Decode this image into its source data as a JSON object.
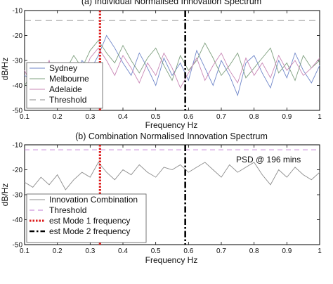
{
  "chart_data": [
    {
      "type": "line",
      "title": "(a) Individual Normalised Innovation Spectrum",
      "xlabel": "Frequency Hz",
      "ylabel": "dB/Hz",
      "xlim": [
        0.1,
        1
      ],
      "ylim": [
        -50,
        -10
      ],
      "xticks": [
        "0.1",
        "0.2",
        "0.3",
        "0.4",
        "0.5",
        "0.6",
        "0.7",
        "0.8",
        "0.9",
        "1"
      ],
      "yticks": [
        "-50",
        "-40",
        "-30",
        "-20",
        "-10"
      ],
      "legend_position": "bottom-left",
      "legend": [
        "Sydney",
        "Melbourne",
        "Adelaide",
        "Threshold"
      ],
      "x": [
        0.1,
        0.125,
        0.15,
        0.175,
        0.2,
        0.225,
        0.25,
        0.275,
        0.3,
        0.325,
        0.35,
        0.375,
        0.4,
        0.425,
        0.45,
        0.475,
        0.5,
        0.525,
        0.55,
        0.575,
        0.6,
        0.625,
        0.65,
        0.675,
        0.7,
        0.725,
        0.75,
        0.775,
        0.8,
        0.825,
        0.85,
        0.875,
        0.9,
        0.925,
        0.95,
        0.975,
        1.0
      ],
      "series": [
        {
          "name": "Sydney",
          "color": "#6f86c9",
          "dash": "",
          "values": [
            -36,
            -38,
            -33,
            -40,
            -35,
            -42,
            -37,
            -30,
            -34,
            -28,
            -20,
            -25,
            -31,
            -36,
            -27,
            -33,
            -40,
            -29,
            -36,
            -31,
            -38,
            -26,
            -33,
            -40,
            -30,
            -36,
            -44,
            -31,
            -28,
            -35,
            -41,
            -30,
            -37,
            -27,
            -34,
            -39,
            -32
          ]
        },
        {
          "name": "Melbourne",
          "color": "#7fa07f",
          "dash": "",
          "values": [
            -40,
            -35,
            -39,
            -32,
            -38,
            -34,
            -28,
            -33,
            -26,
            -22,
            -27,
            -31,
            -24,
            -30,
            -35,
            -29,
            -25,
            -32,
            -38,
            -28,
            -34,
            -30,
            -23,
            -29,
            -36,
            -32,
            -27,
            -37,
            -33,
            -29,
            -25,
            -35,
            -31,
            -38,
            -28,
            -33,
            -30
          ]
        },
        {
          "name": "Adelaide",
          "color": "#c987b6",
          "dash": "",
          "values": [
            -34,
            -41,
            -36,
            -30,
            -42,
            -37,
            -32,
            -38,
            -29,
            -25,
            -30,
            -36,
            -28,
            -33,
            -39,
            -31,
            -36,
            -27,
            -33,
            -41,
            -35,
            -29,
            -38,
            -32,
            -27,
            -34,
            -39,
            -29,
            -36,
            -31,
            -37,
            -28,
            -34,
            -30,
            -36,
            -33,
            -29
          ]
        },
        {
          "name": "Threshold",
          "color": "#8c8c8c",
          "dash": "9 6",
          "values": [
            -14,
            -14,
            -14,
            -14,
            -14,
            -14,
            -14,
            -14,
            -14,
            -14,
            -14,
            -14,
            -14,
            -14,
            -14,
            -14,
            -14,
            -14,
            -14,
            -14,
            -14,
            -14,
            -14,
            -14,
            -14,
            -14,
            -14,
            -14,
            -14,
            -14,
            -14,
            -14,
            -14,
            -14,
            -14,
            -14,
            -14
          ]
        }
      ],
      "markers": [
        {
          "x": 0.33,
          "color": "#dd1c1c",
          "style": "dotted"
        },
        {
          "x": 0.59,
          "color": "#000000",
          "style": "dashdot"
        }
      ]
    },
    {
      "type": "line",
      "title": "(b) Combination Normalised Innovation Spectrum",
      "xlabel": "Frequency Hz",
      "ylabel": "dB/Hz",
      "xlim": [
        0.1,
        1
      ],
      "ylim": [
        -50,
        -10
      ],
      "xticks": [
        "0.1",
        "0.2",
        "0.3",
        "0.4",
        "0.5",
        "0.6",
        "0.7",
        "0.8",
        "0.9",
        "1"
      ],
      "yticks": [
        "-50",
        "-40",
        "-30",
        "-20",
        "-10"
      ],
      "annotation": "PSD @ 196 mins",
      "legend_position": "bottom-left",
      "legend": [
        "Innovation Combination",
        "Threshold",
        "est Mode 1 frequency",
        "est Mode 2 frequency"
      ],
      "x": [
        0.1,
        0.125,
        0.15,
        0.175,
        0.2,
        0.225,
        0.25,
        0.275,
        0.3,
        0.325,
        0.35,
        0.375,
        0.4,
        0.425,
        0.45,
        0.475,
        0.5,
        0.525,
        0.55,
        0.575,
        0.6,
        0.625,
        0.65,
        0.675,
        0.7,
        0.725,
        0.75,
        0.775,
        0.8,
        0.825,
        0.85,
        0.875,
        0.9,
        0.925,
        0.95,
        0.975,
        1.0
      ],
      "series": [
        {
          "name": "Innovation Combination",
          "color": "#8c8c8c",
          "dash": "",
          "values": [
            -25,
            -27,
            -23,
            -26,
            -22,
            -28,
            -24,
            -21,
            -23,
            -17,
            -21,
            -24,
            -20,
            -22,
            -18,
            -21,
            -23,
            -19,
            -20,
            -18,
            -21,
            -19,
            -17,
            -20,
            -23,
            -18,
            -21,
            -19,
            -17,
            -22,
            -26,
            -20,
            -23,
            -19,
            -22,
            -24,
            -21
          ]
        },
        {
          "name": "Threshold",
          "color": "#c27bd6",
          "dash": "7 5",
          "values": [
            -12,
            -12,
            -12,
            -12,
            -12,
            -12,
            -12,
            -12,
            -12,
            -12,
            -12,
            -12,
            -12,
            -12,
            -12,
            -12,
            -12,
            -12,
            -12,
            -12,
            -12,
            -12,
            -12,
            -12,
            -12,
            -12,
            -12,
            -12,
            -12,
            -12,
            -12,
            -12,
            -12,
            -12,
            -12,
            -12,
            -12
          ]
        }
      ],
      "markers": [
        {
          "name": "est Mode 1 frequency",
          "x": 0.33,
          "color": "#dd1c1c",
          "style": "dotted"
        },
        {
          "name": "est Mode 2 frequency",
          "x": 0.59,
          "color": "#000000",
          "style": "dashdot"
        }
      ]
    }
  ]
}
